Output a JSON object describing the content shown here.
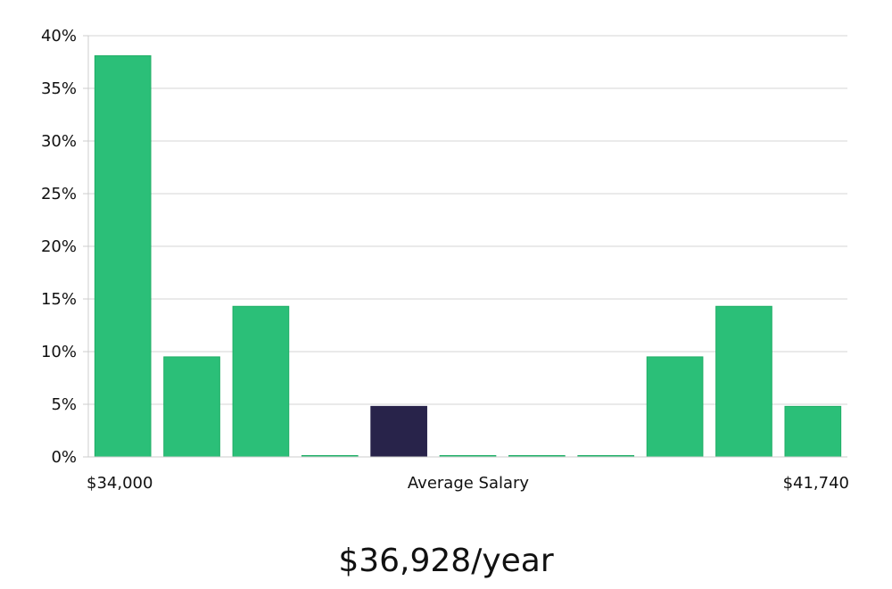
{
  "chart_data": {
    "type": "bar",
    "title": "",
    "xlabel": "",
    "ylabel": "",
    "ylim": [
      0,
      40
    ],
    "yticks": [
      0,
      5,
      10,
      15,
      20,
      25,
      30,
      35,
      40
    ],
    "ytick_suffix": "%",
    "grid": true,
    "values": [
      38.1,
      9.5,
      14.3,
      0,
      4.8,
      0,
      0,
      0,
      9.5,
      14.3,
      4.8
    ],
    "highlight_index": 4,
    "x_labels": {
      "left": "$34,000",
      "center": "Average Salary",
      "right": "$41,740"
    }
  },
  "colors": {
    "bar": "#2bbf78",
    "bar_edge": "#1fae66",
    "highlight": "#28234a",
    "grid": "#e3e3e3",
    "axis": "#cccccc"
  },
  "summary": {
    "average_salary_text": "$36,928/year"
  }
}
